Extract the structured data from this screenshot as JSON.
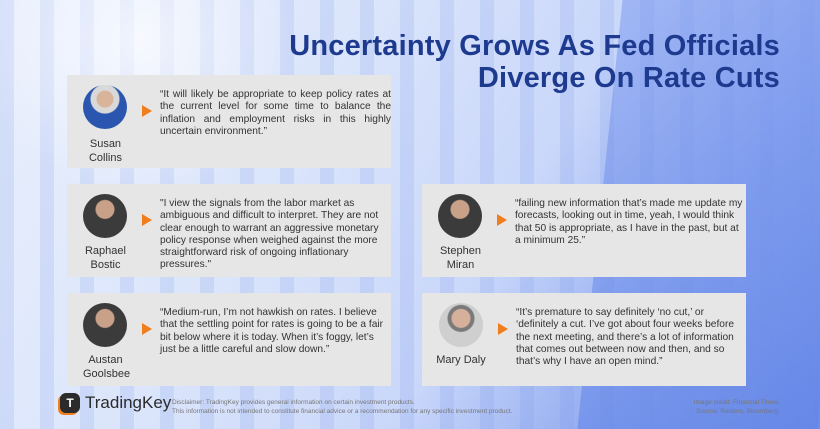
{
  "title_line1": "Uncertainty Grows As Fed Officials",
  "title_line2": "Diverge On Rate Cuts",
  "accent": "#f07d1e",
  "title_color": "#1d3a8f",
  "officials": [
    {
      "name": "Susan Collins",
      "quote": "“It will likely be appropriate to keep policy rates at the current level for some time to balance the inflation and employment risks in this highly uncertain environment.”"
    },
    {
      "name": "Raphael Bostic",
      "quote": "\"I view the signals from the labor market as ambiguous and difficult to interpret. They are not clear enough to warrant an aggressive monetary policy response when weighed against the more straightforward risk of ongoing inflationary pressures.\""
    },
    {
      "name": "Stephen Miran",
      "quote": "“failing new information that’s made me update my forecasts, looking out in time, yeah, I would think that 50 is appropriate, as I have in the past, but at a minimum 25.”"
    },
    {
      "name": "Austan Goolsbee",
      "quote": "“Medium-run, I’m not hawkish on rates. I believe that the settling point for rates is going to be a fair bit below where it is today. When it’s foggy, let’s just be a little careful and slow down.”"
    },
    {
      "name": "Mary Daly",
      "quote": "“It’s premature to say definitely ‘no cut,’ or ‘definitely a cut. I’ve got about four weeks before the next meeting, and there’s a lot of  information that comes out between now and then, and so that’s why I  have an open mind.”"
    }
  ],
  "footer": {
    "logo_mark": "T",
    "logo_text": "TradingKey",
    "disclaimer_1": "Disclaimer: TradingKey provides general information on certain investment products.",
    "disclaimer_2": "This information is not intended to constitute financial advice or a recommendation for any specific investment product.",
    "credit_1": "Image credit: Financial Times,",
    "credit_2": "Source: Reuters, Bloomberg."
  }
}
